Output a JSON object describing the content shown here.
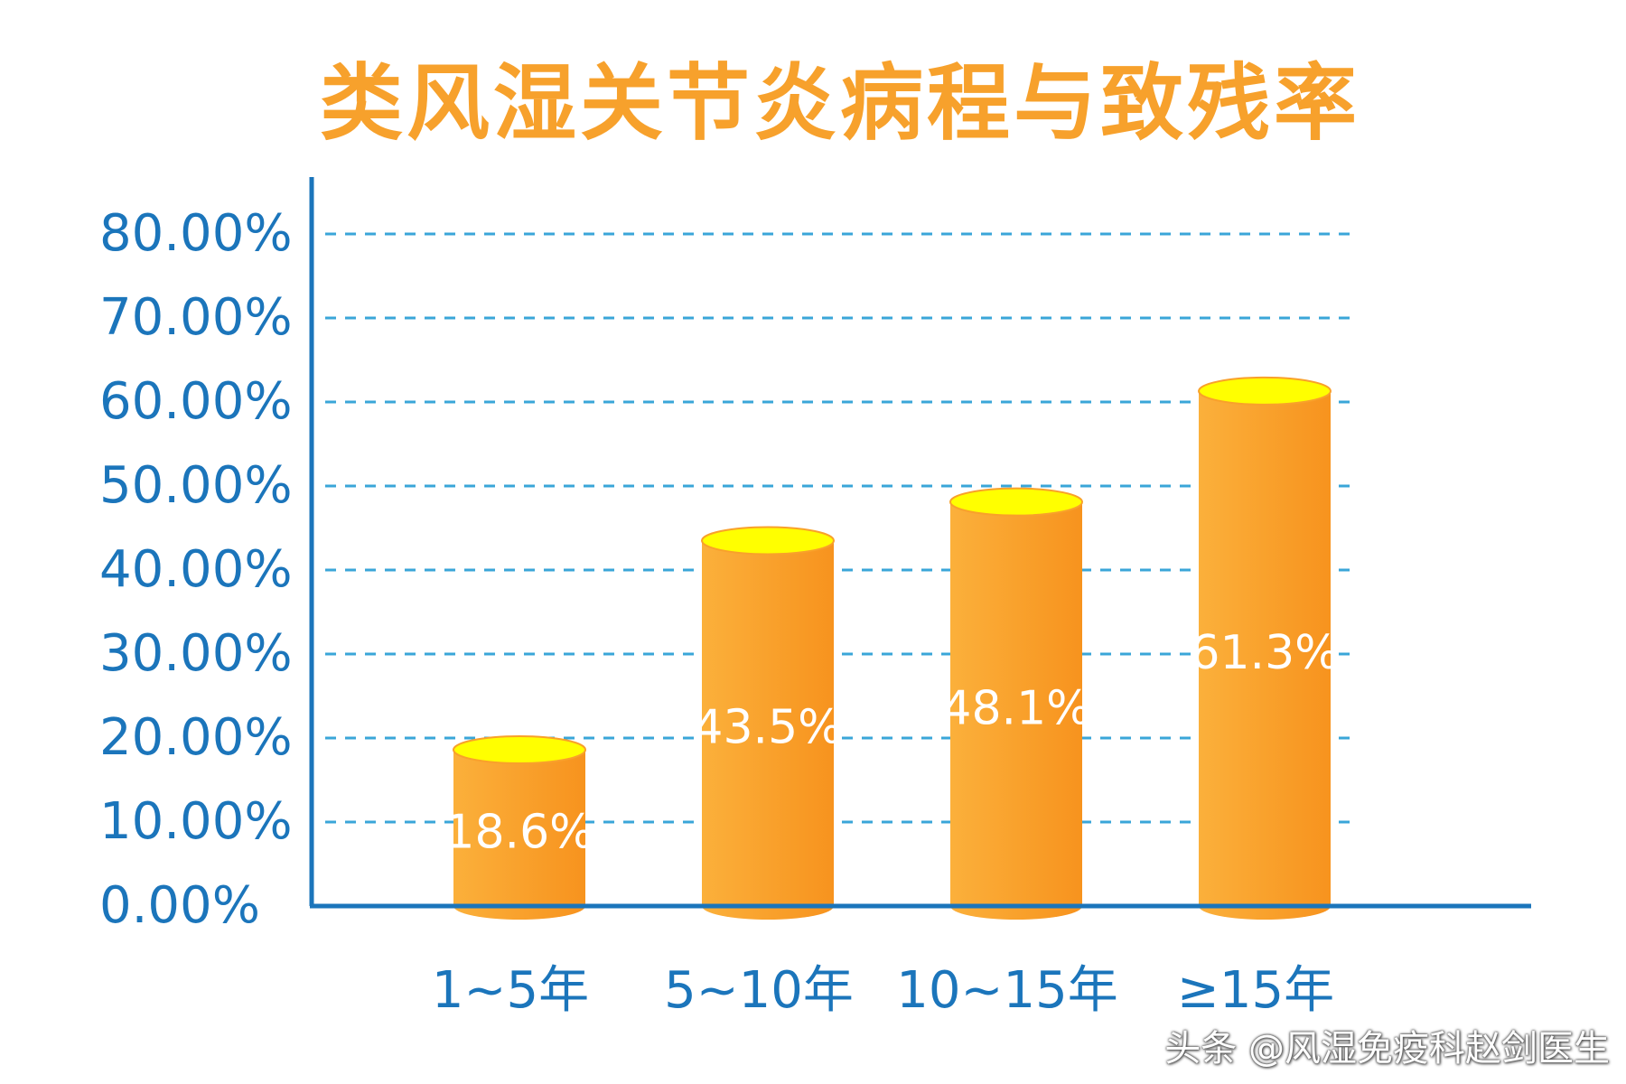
{
  "chart_data": {
    "type": "bar",
    "title": "类风湿关节炎病程与致残率",
    "categories": [
      "1~5年",
      "5~10年",
      "10~15年",
      "≥15年"
    ],
    "values": [
      18.6,
      43.5,
      48.1,
      61.3
    ],
    "data_labels": [
      "18.6%",
      "43.5%",
      "48.1%",
      "61.3%"
    ],
    "ylim": [
      0,
      80
    ],
    "yticks": [
      0,
      10,
      20,
      30,
      40,
      50,
      60,
      70,
      80
    ],
    "ytick_labels": [
      "0.00%",
      "10.00%",
      "20.00%",
      "30.00%",
      "40.00%",
      "50.00%",
      "60.00%",
      "70.00%",
      "80.00%"
    ],
    "grid": true,
    "grid_style": "dashed",
    "bar_style": "cylinder",
    "colors": {
      "title": "#f7a12c",
      "axis": "#1b75bb",
      "tick_text": "#1b75bb",
      "grid": "#3aa6d8",
      "bar_light": "#fbb03b",
      "bar_dark": "#f7931e",
      "bar_top": "#ffff00",
      "bar_top_edge": "#f9a12a",
      "label": "#ffffff"
    }
  },
  "watermark": "头条 @风湿免疫科赵剑医生"
}
